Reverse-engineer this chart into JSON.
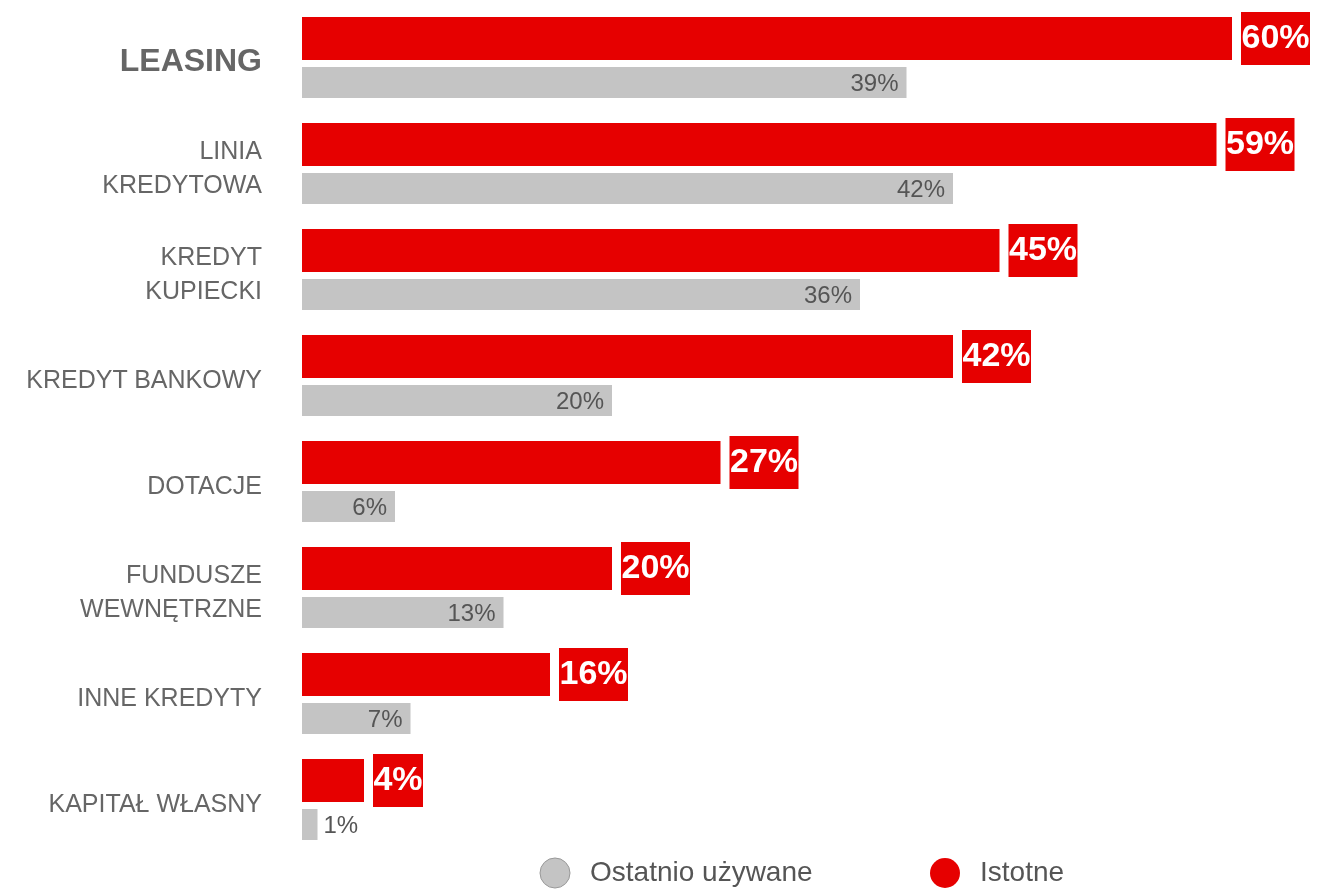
{
  "chart_data": {
    "type": "bar",
    "orientation": "horizontal",
    "categories": [
      "LEASING",
      "LINIA KREDYTOWA",
      "KREDYT KUPIECKI",
      "KREDYT BANKOWY",
      "DOTACJE",
      "FUNDUSZE WEWNĘTRZNE",
      "INNE KREDYTY",
      "KAPITAŁ WŁASNY"
    ],
    "series": [
      {
        "name": "Istotne",
        "color": "#e60000",
        "values": [
          60,
          59,
          45,
          42,
          27,
          20,
          16,
          4
        ],
        "value_labels": [
          "60%",
          "59%",
          "45%",
          "42%",
          "27%",
          "20%",
          "16%",
          "4%"
        ]
      },
      {
        "name": "Ostatnio używane",
        "color": "#c4c4c4",
        "values": [
          39,
          42,
          36,
          20,
          6,
          13,
          7,
          1
        ],
        "value_labels": [
          "39%",
          "42%",
          "36%",
          "20%",
          "6%",
          "13%",
          "7%",
          "1%"
        ]
      }
    ],
    "legend": "bottom"
  }
}
